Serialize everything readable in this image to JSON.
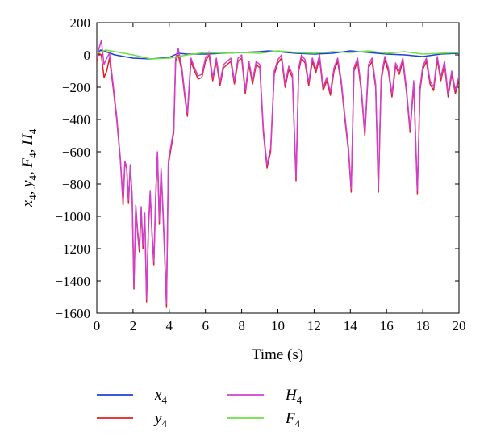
{
  "chart_data": {
    "type": "line",
    "title": "",
    "xlabel": "Time (s)",
    "ylabel": {
      "parts": [
        [
          "x",
          "4"
        ],
        [
          "y",
          "4"
        ],
        [
          "F",
          "4"
        ],
        [
          "H",
          "4"
        ]
      ],
      "separator": ", "
    },
    "xlim": [
      0,
      20
    ],
    "ylim": [
      -1600,
      200
    ],
    "xticks": [
      0,
      2,
      4,
      6,
      8,
      10,
      12,
      14,
      16,
      18,
      20
    ],
    "yticks": [
      200,
      0,
      -200,
      -400,
      -600,
      -800,
      -1000,
      -1200,
      -1400,
      -1600
    ],
    "grid": false,
    "legend_position": "below",
    "series": [
      {
        "name": "x",
        "sub": "4",
        "color": "#1f3fd6",
        "x": [
          0,
          0.2,
          0.5,
          1,
          2,
          3,
          4,
          4.5,
          5,
          6,
          7,
          8,
          9,
          9.5,
          10,
          11,
          12,
          13,
          14,
          15,
          16,
          17,
          18,
          19,
          20
        ],
        "y": [
          0,
          30,
          20,
          0,
          -20,
          -25,
          -15,
          10,
          5,
          5,
          10,
          15,
          20,
          25,
          20,
          10,
          5,
          10,
          25,
          15,
          5,
          0,
          -10,
          5,
          10
        ]
      },
      {
        "name": "y",
        "sub": "4",
        "color": "#e02020",
        "x": [
          0,
          0.1,
          0.25,
          0.4,
          0.55,
          0.7,
          0.9,
          1.1,
          1.3,
          1.45,
          1.55,
          1.65,
          1.75,
          1.85,
          1.95,
          2.05,
          2.15,
          2.25,
          2.35,
          2.45,
          2.55,
          2.65,
          2.75,
          2.85,
          2.95,
          3.05,
          3.15,
          3.25,
          3.35,
          3.45,
          3.55,
          3.65,
          3.75,
          3.85,
          3.95,
          4.1,
          4.25,
          4.35,
          4.5,
          4.7,
          4.85,
          5.0,
          5.2,
          5.4,
          5.6,
          5.8,
          6.0,
          6.2,
          6.4,
          6.6,
          6.8,
          7.0,
          7.2,
          7.4,
          7.6,
          7.8,
          8.0,
          8.2,
          8.4,
          8.6,
          8.8,
          9.0,
          9.2,
          9.4,
          9.6,
          9.8,
          10.0,
          10.2,
          10.4,
          10.6,
          10.8,
          11.0,
          11.15,
          11.3,
          11.5,
          11.7,
          11.9,
          12.1,
          12.3,
          12.5,
          12.7,
          12.9,
          13.1,
          13.3,
          13.5,
          13.7,
          13.9,
          14.05,
          14.2,
          14.4,
          14.6,
          14.8,
          15.0,
          15.2,
          15.4,
          15.55,
          15.7,
          15.9,
          16.1,
          16.3,
          16.5,
          16.7,
          16.9,
          17.1,
          17.3,
          17.5,
          17.7,
          17.85,
          18.0,
          18.2,
          18.4,
          18.6,
          18.8,
          19.0,
          19.2,
          19.4,
          19.6,
          19.8,
          20.0
        ],
        "y": [
          -40,
          10,
          0,
          -140,
          -100,
          -20,
          -200,
          -400,
          -650,
          -930,
          -670,
          -700,
          -920,
          -690,
          -880,
          -1450,
          -950,
          -1100,
          -1220,
          -960,
          -1200,
          -1000,
          -1530,
          -1080,
          -860,
          -1120,
          -1300,
          -890,
          -610,
          -1050,
          -720,
          -960,
          -1250,
          -1560,
          -680,
          -580,
          -480,
          -40,
          0,
          -100,
          -250,
          -380,
          -40,
          -100,
          -150,
          -140,
          -40,
          0,
          -160,
          -40,
          -190,
          -80,
          -60,
          -40,
          -180,
          -40,
          -20,
          -240,
          -60,
          -180,
          -60,
          -80,
          -480,
          -700,
          -600,
          -120,
          -50,
          -20,
          -200,
          -90,
          -140,
          -780,
          -100,
          -20,
          -50,
          -190,
          -40,
          -110,
          -20,
          -220,
          -160,
          -250,
          -100,
          -40,
          -180,
          -400,
          -600,
          -850,
          -100,
          -40,
          -220,
          -500,
          -80,
          -40,
          -200,
          -850,
          -160,
          -30,
          -100,
          -260,
          -70,
          -120,
          -40,
          -230,
          -480,
          -180,
          -860,
          -220,
          -90,
          -40,
          -180,
          -220,
          -30,
          -160,
          -60,
          -260,
          -120,
          -240,
          -150
        ]
      },
      {
        "name": "H",
        "sub": "4",
        "color": "#d040d0",
        "x": [
          0,
          0.1,
          0.25,
          0.4,
          0.55,
          0.7,
          0.9,
          1.1,
          1.3,
          1.45,
          1.55,
          1.65,
          1.75,
          1.85,
          1.95,
          2.05,
          2.15,
          2.25,
          2.35,
          2.45,
          2.55,
          2.65,
          2.75,
          2.85,
          2.95,
          3.05,
          3.15,
          3.25,
          3.35,
          3.45,
          3.55,
          3.65,
          3.75,
          3.85,
          3.95,
          4.1,
          4.25,
          4.35,
          4.5,
          4.7,
          4.85,
          5.0,
          5.2,
          5.4,
          5.6,
          5.8,
          6.0,
          6.2,
          6.4,
          6.6,
          6.8,
          7.0,
          7.2,
          7.4,
          7.6,
          7.8,
          8.0,
          8.2,
          8.4,
          8.6,
          8.8,
          9.0,
          9.2,
          9.4,
          9.6,
          9.8,
          10.0,
          10.2,
          10.4,
          10.6,
          10.8,
          11.0,
          11.15,
          11.3,
          11.5,
          11.7,
          11.9,
          12.1,
          12.3,
          12.5,
          12.7,
          12.9,
          13.1,
          13.3,
          13.5,
          13.7,
          13.9,
          14.05,
          14.2,
          14.4,
          14.6,
          14.8,
          15.0,
          15.2,
          15.4,
          15.55,
          15.7,
          15.9,
          16.1,
          16.3,
          16.5,
          16.7,
          16.9,
          17.1,
          17.3,
          17.5,
          17.7,
          17.85,
          18.0,
          18.2,
          18.4,
          18.6,
          18.8,
          19.0,
          19.2,
          19.4,
          19.6,
          19.8,
          20.0
        ],
        "y": [
          -20,
          30,
          90,
          -60,
          -20,
          10,
          -180,
          -380,
          -640,
          -910,
          -660,
          -690,
          -900,
          -680,
          -870,
          -1430,
          -930,
          -1080,
          -1200,
          -940,
          -1180,
          -980,
          -1510,
          -1060,
          -840,
          -1100,
          -1280,
          -870,
          -600,
          -1030,
          -700,
          -940,
          -1230,
          -1540,
          -660,
          -560,
          -460,
          -20,
          40,
          -80,
          -230,
          -360,
          -20,
          -80,
          -130,
          -120,
          -20,
          20,
          -140,
          -20,
          -170,
          -60,
          -40,
          -20,
          -160,
          -20,
          0,
          -220,
          -40,
          -160,
          -40,
          -60,
          -460,
          -680,
          -580,
          -100,
          -30,
          0,
          -180,
          -70,
          -120,
          -760,
          -80,
          0,
          -30,
          -170,
          -20,
          -90,
          0,
          -200,
          -140,
          -230,
          -80,
          -20,
          -160,
          -380,
          -580,
          -830,
          -80,
          -20,
          -200,
          -480,
          -60,
          -20,
          -180,
          -830,
          -140,
          -10,
          -80,
          -240,
          -50,
          -100,
          -20,
          -210,
          -460,
          -160,
          -840,
          -200,
          -70,
          -20,
          -160,
          -200,
          -10,
          -140,
          -40,
          -240,
          -100,
          -220,
          -130
        ]
      },
      {
        "name": "F",
        "sub": "4",
        "color": "#6ee040",
        "x": [
          0,
          0.5,
          1,
          2,
          3,
          4,
          5,
          6,
          7,
          8,
          9,
          10,
          11,
          12,
          13,
          14,
          15,
          16,
          17,
          18,
          19,
          20
        ],
        "y": [
          10,
          30,
          20,
          0,
          -25,
          -20,
          0,
          15,
          10,
          15,
          10,
          25,
          15,
          10,
          20,
          15,
          25,
          10,
          20,
          5,
          10,
          15
        ]
      }
    ],
    "legend_layout": [
      [
        "x",
        "H"
      ],
      [
        "y",
        "F"
      ]
    ]
  }
}
